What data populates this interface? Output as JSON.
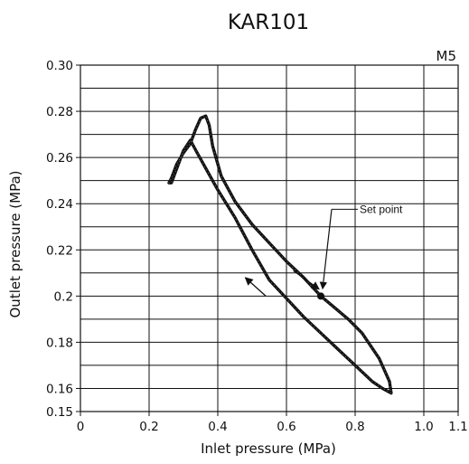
{
  "chart_data": {
    "type": "line",
    "title": "KAR101",
    "model": "M5",
    "xlabel": "Inlet pressure (MPa)",
    "ylabel": "Outlet pressure (MPa)",
    "xlim": [
      0,
      1.1
    ],
    "ylim": [
      0.15,
      0.3
    ],
    "x_ticks": [
      {
        "value": 0,
        "label": "0"
      },
      {
        "value": 0.2,
        "label": "0.2"
      },
      {
        "value": 0.4,
        "label": "0.4"
      },
      {
        "value": 0.6,
        "label": "0.6"
      },
      {
        "value": 0.8,
        "label": "0.8"
      },
      {
        "value": 1.0,
        "label": "1.0"
      },
      {
        "value": 1.1,
        "label": "1.1"
      }
    ],
    "y_ticks": [
      {
        "value": 0.15,
        "label": "0.15"
      },
      {
        "value": 0.16,
        "label": "0.16"
      },
      {
        "value": 0.18,
        "label": "0.18"
      },
      {
        "value": 0.2,
        "label": "0.2"
      },
      {
        "value": 0.22,
        "label": "0.22"
      },
      {
        "value": 0.24,
        "label": "0.24"
      },
      {
        "value": 0.26,
        "label": "0.26"
      },
      {
        "value": 0.28,
        "label": "0.28"
      },
      {
        "value": 0.3,
        "label": "0.30"
      }
    ],
    "x_grid": [
      0,
      0.2,
      0.4,
      0.6,
      0.8,
      1.0,
      1.1
    ],
    "y_grid": [
      0.15,
      0.16,
      0.17,
      0.18,
      0.19,
      0.2,
      0.21,
      0.22,
      0.23,
      0.24,
      0.25,
      0.26,
      0.27,
      0.28,
      0.29,
      0.3
    ],
    "grid": true,
    "series": [
      {
        "points": [
          [
            0.7,
            0.2
          ],
          [
            0.65,
            0.208
          ],
          [
            0.6,
            0.215
          ],
          [
            0.55,
            0.223
          ],
          [
            0.5,
            0.231
          ],
          [
            0.45,
            0.241
          ],
          [
            0.41,
            0.252
          ],
          [
            0.385,
            0.265
          ],
          [
            0.375,
            0.274
          ],
          [
            0.365,
            0.278
          ],
          [
            0.35,
            0.277
          ],
          [
            0.335,
            0.272
          ],
          [
            0.32,
            0.266
          ],
          [
            0.3,
            0.262
          ],
          [
            0.28,
            0.257
          ],
          [
            0.265,
            0.251
          ],
          [
            0.258,
            0.249
          ],
          [
            0.265,
            0.249
          ],
          [
            0.28,
            0.255
          ],
          [
            0.3,
            0.263
          ],
          [
            0.32,
            0.2675
          ],
          [
            0.34,
            0.262
          ],
          [
            0.37,
            0.254
          ],
          [
            0.4,
            0.246
          ],
          [
            0.45,
            0.234
          ],
          [
            0.5,
            0.22
          ],
          [
            0.55,
            0.207
          ],
          [
            0.6,
            0.199
          ],
          [
            0.65,
            0.191
          ],
          [
            0.7,
            0.184
          ],
          [
            0.75,
            0.177
          ],
          [
            0.8,
            0.17
          ],
          [
            0.85,
            0.163
          ],
          [
            0.88,
            0.16
          ],
          [
            0.905,
            0.158
          ],
          [
            0.9,
            0.163
          ],
          [
            0.87,
            0.173
          ],
          [
            0.82,
            0.184
          ],
          [
            0.78,
            0.19
          ],
          [
            0.74,
            0.195
          ],
          [
            0.7,
            0.2
          ]
        ]
      }
    ],
    "annotations": [
      {
        "text": "Set point",
        "x": 0.7,
        "y": 0.2
      }
    ],
    "direction_arrows": [
      {
        "from": [
          0.62,
          0.211
        ],
        "to": [
          0.695,
          0.203
        ]
      },
      {
        "from": [
          0.54,
          0.2
        ],
        "to": [
          0.48,
          0.208
        ]
      }
    ]
  }
}
